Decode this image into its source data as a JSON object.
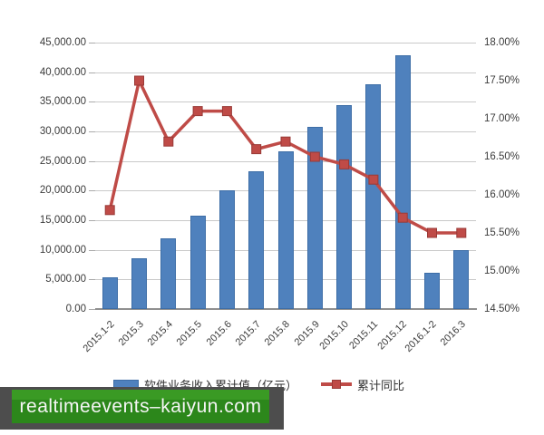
{
  "legend": {
    "bar_label": "软件业务收入累计值（亿元）",
    "line_label": "累计同比"
  },
  "watermark": {
    "text": "realtimeevents–kaiyun.com",
    "banner_color": "#2c871b",
    "shadow_color": "#4d4d4d"
  },
  "colors": {
    "bar": "#4f81bd",
    "line": "#bf4b47",
    "grid": "#c9c9c9",
    "axis": "#8f8f8f"
  },
  "chart_data": {
    "type": "bar+line combo",
    "title": "",
    "grid": true,
    "legend_position": "bottom",
    "categories": [
      "2015.1-2",
      "2015.3",
      "2015.4",
      "2015.5",
      "2015.6",
      "2015.7",
      "2015.8",
      "2015.9",
      "2015.10",
      "2015.11",
      "2015.12",
      "2016.1-2",
      "2016.3"
    ],
    "series": [
      {
        "name": "软件业务收入累计值（亿元）",
        "type": "bar",
        "axis": "left",
        "color": "#4f81bd",
        "values": [
          5400,
          8600,
          11900,
          15700,
          20100,
          23300,
          26700,
          30800,
          34500,
          38000,
          42800,
          6100,
          9900
        ]
      },
      {
        "name": "累计同比",
        "type": "line",
        "axis": "right",
        "color": "#bf4b47",
        "marker": "square",
        "values": [
          15.8,
          17.5,
          16.7,
          17.1,
          17.1,
          16.6,
          16.7,
          16.5,
          16.4,
          16.2,
          15.7,
          15.5,
          15.5
        ]
      }
    ],
    "left_axis": {
      "min": 0,
      "max": 45000,
      "step": 5000,
      "tick_labels": [
        "45,000.00",
        "40,000.00",
        "35,000.00",
        "30,000.00",
        "25,000.00",
        "20,000.00",
        "15,000.00",
        "10,000.00",
        "5,000.00",
        "0.00"
      ]
    },
    "right_axis": {
      "min": 14.5,
      "max": 18.0,
      "step": 0.5,
      "tick_labels": [
        "18.00%",
        "17.50%",
        "17.00%",
        "16.50%",
        "16.00%",
        "15.50%",
        "15.00%",
        "14.50%"
      ]
    }
  }
}
